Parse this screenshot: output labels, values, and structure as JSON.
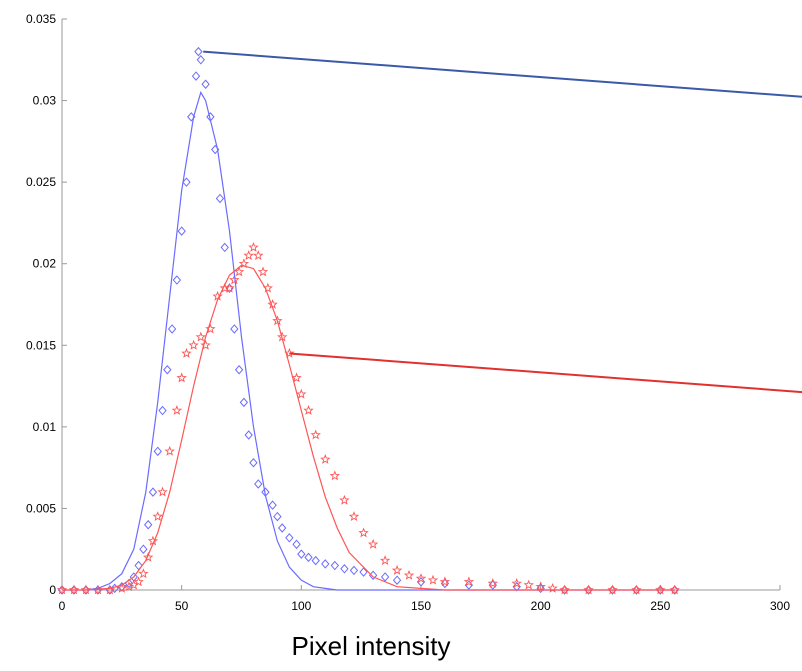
{
  "chart_data": {
    "type": "scatter",
    "title": "",
    "xlabel": "Pixel intensity",
    "ylabel": "",
    "xlim": [
      0,
      300
    ],
    "ylim": [
      0,
      0.035
    ],
    "xticks": [
      0,
      50,
      100,
      150,
      200,
      250,
      300
    ],
    "xtick_labels": [
      "0",
      "50",
      "100",
      "150",
      "200",
      "250",
      "300"
    ],
    "yticks": [
      0,
      0.005,
      0.01,
      0.015,
      0.02,
      0.025,
      0.03,
      0.035
    ],
    "ytick_labels": [
      "0",
      "0.005",
      "0.01",
      "0.015",
      "0.02",
      "0.025",
      "0.03",
      "0.035"
    ],
    "grid": false,
    "series": [
      {
        "marker": "diamond",
        "color": "#6b6bff",
        "x": [
          0,
          5,
          10,
          15,
          20,
          22,
          25,
          28,
          30,
          32,
          34,
          36,
          38,
          40,
          42,
          44,
          46,
          48,
          50,
          52,
          54,
          56,
          57,
          58,
          60,
          62,
          64,
          66,
          68,
          70,
          72,
          74,
          76,
          78,
          80,
          82,
          85,
          88,
          90,
          92,
          95,
          98,
          100,
          103,
          106,
          110,
          114,
          118,
          122,
          126,
          130,
          135,
          140,
          150,
          160,
          170,
          180,
          190,
          200,
          210,
          220,
          230,
          240,
          250,
          256
        ],
        "y": [
          0,
          0,
          0,
          0,
          0,
          0.0001,
          0.0002,
          0.0004,
          0.0008,
          0.0015,
          0.0025,
          0.004,
          0.006,
          0.0085,
          0.011,
          0.0135,
          0.016,
          0.019,
          0.022,
          0.025,
          0.029,
          0.0315,
          0.033,
          0.0325,
          0.031,
          0.029,
          0.027,
          0.024,
          0.021,
          0.0185,
          0.016,
          0.0135,
          0.0115,
          0.0095,
          0.0078,
          0.0065,
          0.006,
          0.0052,
          0.0045,
          0.0038,
          0.0032,
          0.0028,
          0.0022,
          0.002,
          0.0018,
          0.0016,
          0.0015,
          0.0013,
          0.0012,
          0.0011,
          0.0009,
          0.0008,
          0.0006,
          0.0005,
          0.0004,
          0.0003,
          0.0003,
          0.0002,
          0.0001,
          0,
          0,
          0,
          0,
          0,
          0
        ]
      },
      {
        "marker": "star",
        "color": "#ff5555",
        "x": [
          0,
          5,
          10,
          15,
          20,
          25,
          28,
          30,
          32,
          34,
          36,
          38,
          40,
          42,
          45,
          48,
          50,
          52,
          55,
          58,
          60,
          62,
          65,
          68,
          70,
          72,
          74,
          76,
          78,
          80,
          82,
          84,
          86,
          88,
          90,
          92,
          95,
          98,
          100,
          103,
          106,
          110,
          114,
          118,
          122,
          126,
          130,
          135,
          140,
          145,
          150,
          155,
          160,
          170,
          180,
          190,
          195,
          200,
          205,
          210,
          220,
          230,
          240,
          250,
          256
        ],
        "y": [
          0,
          0,
          0,
          0,
          0,
          0.0001,
          0.0002,
          0.0003,
          0.0005,
          0.001,
          0.002,
          0.003,
          0.0045,
          0.006,
          0.0085,
          0.011,
          0.013,
          0.0145,
          0.015,
          0.0155,
          0.015,
          0.016,
          0.018,
          0.0185,
          0.0185,
          0.019,
          0.0195,
          0.02,
          0.0205,
          0.021,
          0.0205,
          0.0195,
          0.0185,
          0.0175,
          0.0165,
          0.0155,
          0.0145,
          0.013,
          0.012,
          0.011,
          0.0095,
          0.008,
          0.007,
          0.0055,
          0.0045,
          0.0035,
          0.0028,
          0.0018,
          0.0012,
          0.0009,
          0.0007,
          0.0006,
          0.0005,
          0.0005,
          0.0004,
          0.0004,
          0.0003,
          0.0002,
          0.0001,
          0,
          0,
          0,
          0,
          0,
          0
        ]
      },
      {
        "marker": "line",
        "color": "#6b6bff",
        "x": [
          0,
          10,
          15,
          20,
          25,
          30,
          35,
          40,
          45,
          50,
          55,
          58,
          60,
          65,
          70,
          75,
          80,
          85,
          90,
          95,
          100,
          105,
          110,
          115,
          120,
          130,
          140,
          150,
          200,
          256
        ],
        "y": [
          0,
          0,
          0.0001,
          0.0004,
          0.001,
          0.0025,
          0.006,
          0.0115,
          0.018,
          0.0245,
          0.029,
          0.0305,
          0.03,
          0.027,
          0.022,
          0.0155,
          0.01,
          0.0058,
          0.003,
          0.0014,
          0.0006,
          0.0002,
          0.0001,
          0,
          0,
          0,
          0,
          0,
          0,
          0
        ]
      },
      {
        "marker": "line",
        "color": "#ff5555",
        "x": [
          0,
          10,
          20,
          25,
          30,
          35,
          40,
          45,
          50,
          55,
          60,
          65,
          70,
          75,
          80,
          85,
          90,
          95,
          100,
          105,
          110,
          115,
          120,
          130,
          140,
          150,
          160,
          200,
          256
        ],
        "y": [
          0,
          0,
          0.0001,
          0.0003,
          0.0008,
          0.0018,
          0.0035,
          0.006,
          0.0092,
          0.0125,
          0.0155,
          0.0178,
          0.0193,
          0.0199,
          0.0197,
          0.0185,
          0.0165,
          0.0138,
          0.011,
          0.0082,
          0.0057,
          0.0038,
          0.0023,
          0.0008,
          0.0002,
          0.0001,
          0,
          0,
          0
        ]
      }
    ],
    "annotation_lines": [
      {
        "color": "#3a5aa8",
        "x": 59,
        "y": 0.033,
        "to_x": 312,
        "to_y": 0.0302
      },
      {
        "color": "#e0312e",
        "x": 95,
        "y": 0.0145,
        "to_x": 312,
        "to_y": 0.0121
      }
    ]
  }
}
